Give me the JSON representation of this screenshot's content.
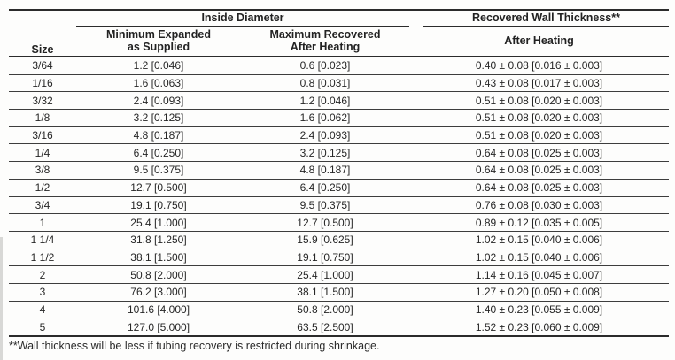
{
  "page": {
    "background": "#fdfdfc",
    "text_color": "#262626",
    "border_color": "#2b2b2b"
  },
  "table": {
    "group_headers": {
      "size": "Size",
      "inside_diameter": "Inside Diameter",
      "recovered_wall": "Recovered Wall Thickness**"
    },
    "column_headers": {
      "min_expanded_line1": "Minimum Expanded",
      "min_expanded_line2": "as Supplied",
      "max_recovered_line1": "Maximum Recovered",
      "max_recovered_line2": "After Heating",
      "wall_after_heating": "After Heating"
    },
    "rows": [
      {
        "size": "3/64",
        "min_expanded": "1.2 [0.046]",
        "max_recovered": "0.6 [0.023]",
        "wall_thickness": "0.40 ± 0.08 [0.016 ± 0.003]"
      },
      {
        "size": "1/16",
        "min_expanded": "1.6 [0.063]",
        "max_recovered": "0.8 [0.031]",
        "wall_thickness": "0.43 ± 0.08 [0.017 ± 0.003]"
      },
      {
        "size": "3/32",
        "min_expanded": "2.4 [0.093]",
        "max_recovered": "1.2 [0.046]",
        "wall_thickness": "0.51 ± 0.08 [0.020 ± 0.003]"
      },
      {
        "size": "1/8",
        "min_expanded": "3.2 [0.125]",
        "max_recovered": "1.6 [0.062]",
        "wall_thickness": "0.51 ± 0.08 [0.020 ± 0.003]"
      },
      {
        "size": "3/16",
        "min_expanded": "4.8 [0.187]",
        "max_recovered": "2.4 [0.093]",
        "wall_thickness": "0.51 ± 0.08 [0.020 ± 0.003]"
      },
      {
        "size": "1/4",
        "min_expanded": "6.4 [0.250]",
        "max_recovered": "3.2 [0.125]",
        "wall_thickness": "0.64 ± 0.08 [0.025 ± 0.003]"
      },
      {
        "size": "3/8",
        "min_expanded": "9.5 [0.375]",
        "max_recovered": "4.8 [0.187]",
        "wall_thickness": "0.64 ± 0.08 [0.025 ± 0.003]"
      },
      {
        "size": "1/2",
        "min_expanded": "12.7 [0.500]",
        "max_recovered": "6.4 [0.250]",
        "wall_thickness": "0.64 ± 0.08 [0.025 ± 0.003]"
      },
      {
        "size": "3/4",
        "min_expanded": "19.1 [0.750]",
        "max_recovered": "9.5 [0.375]",
        "wall_thickness": "0.76 ± 0.08 [0.030 ± 0.003]"
      },
      {
        "size": "1",
        "min_expanded": "25.4 [1.000]",
        "max_recovered": "12.7 [0.500]",
        "wall_thickness": "0.89 ± 0.12 [0.035 ± 0.005]"
      },
      {
        "size": "1 1/4",
        "min_expanded": "31.8 [1.250]",
        "max_recovered": "15.9 [0.625]",
        "wall_thickness": "1.02 ± 0.15 [0.040 ± 0.006]"
      },
      {
        "size": "1 1/2",
        "min_expanded": "38.1 [1.500]",
        "max_recovered": "19.1 [0.750]",
        "wall_thickness": "1.02 ± 0.15 [0.040 ± 0.006]"
      },
      {
        "size": "2",
        "min_expanded": "50.8 [2.000]",
        "max_recovered": "25.4 [1.000]",
        "wall_thickness": "1.14 ± 0.16 [0.045 ± 0.007]"
      },
      {
        "size": "3",
        "min_expanded": "76.2 [3.000]",
        "max_recovered": "38.1 [1.500]",
        "wall_thickness": "1.27 ± 0.20 [0.050 ± 0.008]"
      },
      {
        "size": "4",
        "min_expanded": "101.6 [4.000]",
        "max_recovered": "50.8 [2.000]",
        "wall_thickness": "1.40 ± 0.23 [0.055 ± 0.009]"
      },
      {
        "size": "5",
        "min_expanded": "127.0 [5.000]",
        "max_recovered": "63.5 [2.500]",
        "wall_thickness": "1.52 ± 0.23 [0.060 ± 0.009]"
      }
    ],
    "footnote": "**Wall thickness will be less if tubing recovery is restricted during shrinkage."
  }
}
